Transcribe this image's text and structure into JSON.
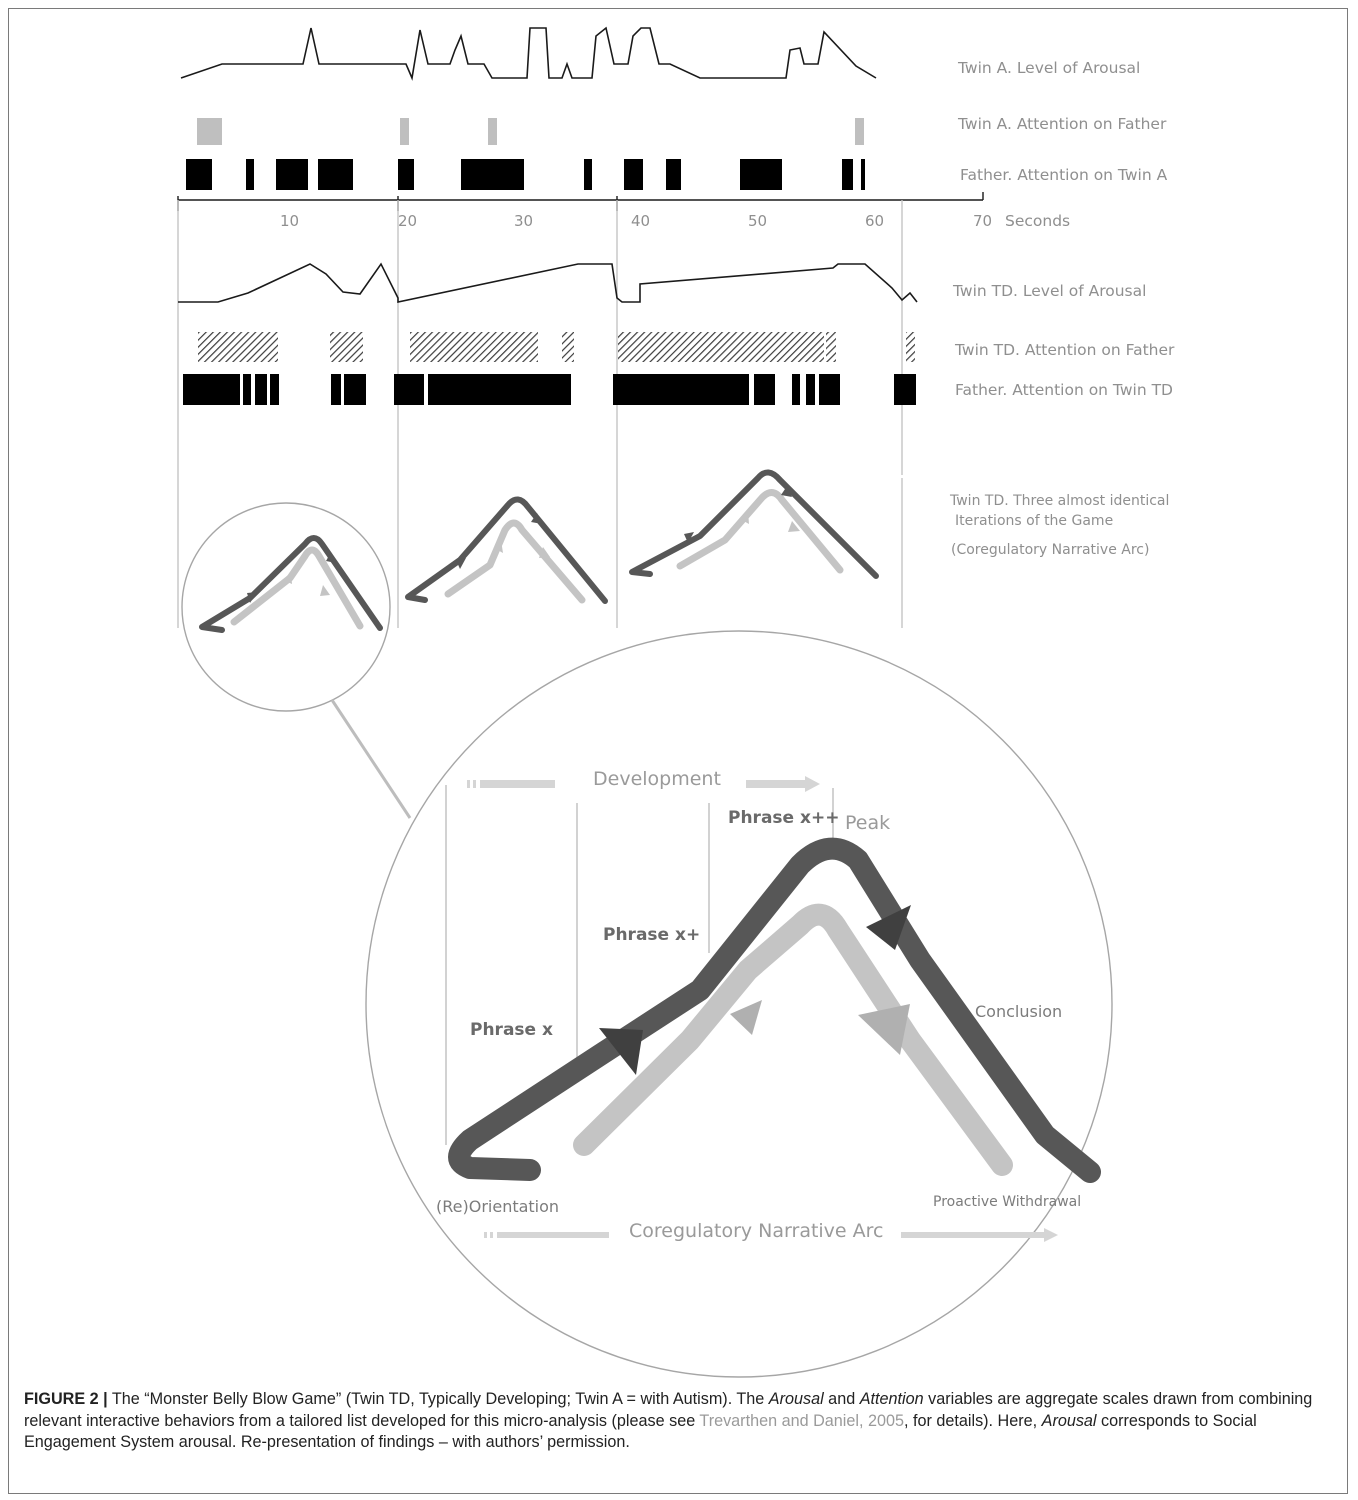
{
  "figure": {
    "labels": {
      "twin_a_arousal": "Twin A. Level of Arousal",
      "twin_a_attention": "Twin A. Attention on Father",
      "father_att_twin_a": "Father. Attention on Twin A",
      "axis_unit": "Seconds",
      "twin_td_arousal": "Twin TD. Level of Arousal",
      "twin_td_attention": "Twin TD. Attention on Father",
      "father_att_twin_td": "Father. Attention on Twin TD",
      "iterations_line1": "Twin TD. Three almost identical",
      "iterations_line2": "Iterations of the Game",
      "iterations_line3": "(Coregulatory Narrative Arc)"
    },
    "ticks": [
      "10",
      "20",
      "30",
      "40",
      "50",
      "60",
      "70"
    ],
    "detail": {
      "development": "Development",
      "phrase_x": "Phrase x",
      "phrase_x_plus": "Phrase x+",
      "phrase_x_plus_plus": "Phrase x++",
      "peak": "Peak",
      "conclusion": "Conclusion",
      "reorientation": "(Re)Orientation",
      "proactive_withdrawal": "Proactive Withdrawal",
      "arc_title": "Coregulatory Narrative Arc"
    }
  },
  "caption": {
    "label": "FIGURE 2 |",
    "t1": " The “Monster Belly Blow Game” (Twin TD, Typically Developing; Twin A = with Autism). The ",
    "i1": "Arousal",
    "t2": " and ",
    "i2": "Attention",
    "t3": " variables are aggregate scales drawn from combining relevant interactive behaviors from a tailored list developed for this micro-analysis (please see ",
    "link": "Trevarthen and Daniel, 2005",
    "t4": ", for details). Here, ",
    "i3": "Arousal",
    "t5": " corresponds to Social Engagement System arousal. Re-presentation of findings – with authors’ permission."
  },
  "colors": {
    "dark_arc": "#575757",
    "light_arc": "#c4c4c4",
    "grey_block": "#bfbfbf",
    "label_grey": "#8f8f8f"
  }
}
